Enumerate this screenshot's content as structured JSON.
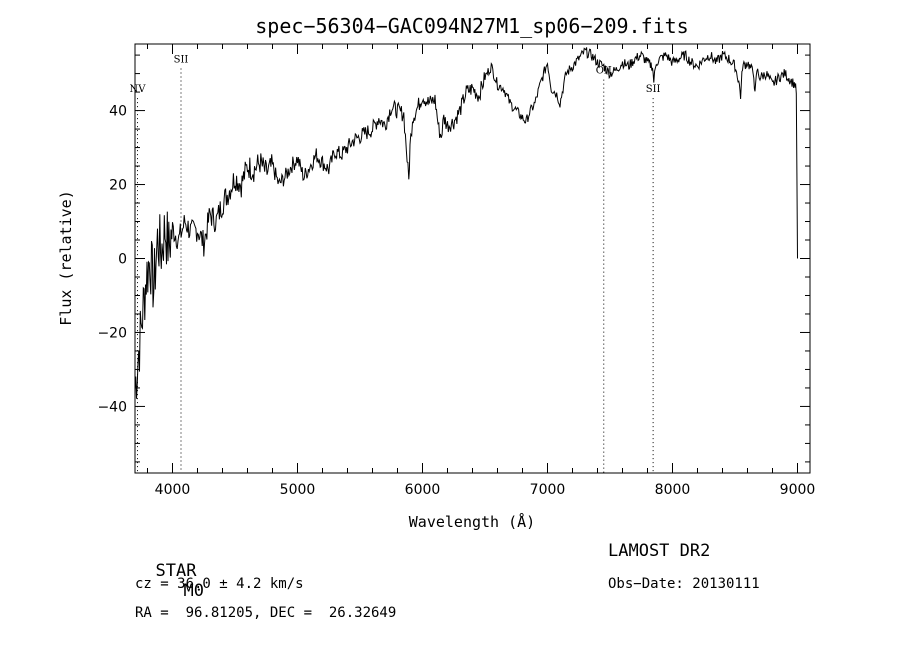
{
  "chart_data": {
    "type": "line",
    "title": "spec−56304−GAC094N27M1_sp06−209.fits",
    "xlabel": "Wavelength (Å)",
    "ylabel": "Flux (relative)",
    "xlim": [
      3700,
      9100
    ],
    "ylim": [
      -58,
      58
    ],
    "x_ticks": [
      4000,
      5000,
      6000,
      7000,
      8000,
      9000
    ],
    "y_ticks": [
      -40,
      -20,
      0,
      20,
      40
    ],
    "y_tick_labels": [
      "−40",
      "−20",
      "0",
      "20",
      "40"
    ],
    "grid": false,
    "series": [
      {
        "x": [
          3700,
          3730,
          3760,
          3790,
          3820,
          3850,
          3880,
          3910,
          3940,
          3970,
          4000,
          4050,
          4100,
          4150,
          4200,
          4250,
          4300,
          4350,
          4400,
          4450,
          4500,
          4550,
          4600,
          4650,
          4700,
          4750,
          4800,
          4850,
          4900,
          4950,
          5000,
          5050,
          5100,
          5150,
          5200,
          5250,
          5300,
          5350,
          5400,
          5450,
          5500,
          5550,
          5600,
          5650,
          5700,
          5750,
          5800,
          5850,
          5870,
          5890,
          5900,
          5920,
          5950,
          6000,
          6050,
          6100,
          6130,
          6150,
          6170,
          6200,
          6250,
          6300,
          6350,
          6400,
          6450,
          6500,
          6550,
          6600,
          6650,
          6700,
          6750,
          6800,
          6830,
          6850,
          6900,
          6950,
          7000,
          7030,
          7060,
          7080,
          7100,
          7130,
          7150,
          7200,
          7250,
          7300,
          7350,
          7400,
          7450,
          7500,
          7550,
          7600,
          7650,
          7700,
          7750,
          7800,
          7840,
          7850,
          7870,
          7900,
          7950,
          8000,
          8050,
          8100,
          8150,
          8200,
          8250,
          8300,
          8350,
          8400,
          8450,
          8500,
          8530,
          8545,
          8560,
          8600,
          8650,
          8660,
          8675,
          8700,
          8750,
          8800,
          8850,
          8900,
          8950,
          8980,
          8990,
          9000
        ],
        "y": [
          -35,
          -25,
          -15,
          -5,
          0,
          -8,
          5,
          2,
          8,
          3,
          8,
          5,
          10,
          7,
          8,
          4,
          12,
          10,
          15,
          18,
          22,
          20,
          25,
          24,
          26,
          23,
          25,
          20,
          22,
          25,
          27,
          22,
          25,
          28,
          26,
          24,
          29,
          28,
          30,
          32,
          33,
          34,
          35,
          38,
          36,
          41,
          40,
          39,
          30,
          21,
          30,
          38,
          40,
          44,
          42,
          43,
          35,
          33,
          38,
          36,
          37,
          40,
          45,
          46,
          44,
          49,
          52,
          47,
          46,
          42,
          40,
          38,
          37,
          39,
          42,
          48,
          53,
          46,
          45,
          44,
          42,
          47,
          50,
          52,
          54,
          56,
          55,
          53,
          52,
          50,
          51,
          53,
          52,
          54,
          55,
          53,
          52,
          48,
          53,
          54,
          55,
          53,
          54,
          55,
          53,
          52,
          54,
          55,
          53,
          55,
          54,
          52,
          48,
          44,
          52,
          53,
          50,
          44,
          51,
          49,
          50,
          47,
          49,
          50,
          48,
          47,
          45,
          0
        ]
      }
    ],
    "line_markers": [
      {
        "label": "NⅤ",
        "x": 3720,
        "label_y": 45
      },
      {
        "label": "SII",
        "x": 4068,
        "label_y": 53
      },
      {
        "label": "OII",
        "x": 7450,
        "label_y": 50
      },
      {
        "label": "SII",
        "x": 7845,
        "label_y": 45
      }
    ]
  },
  "footer": {
    "left_line1_a": "STAR",
    "left_line1_b": "M0",
    "left_line2": "cz = 36.0 ± 4.2 km/s",
    "left_line3": "RA =  96.81205, DEC =  26.32649",
    "right_line1": "LAMOST DR2",
    "right_line2": "Obs−Date: 20130111"
  }
}
